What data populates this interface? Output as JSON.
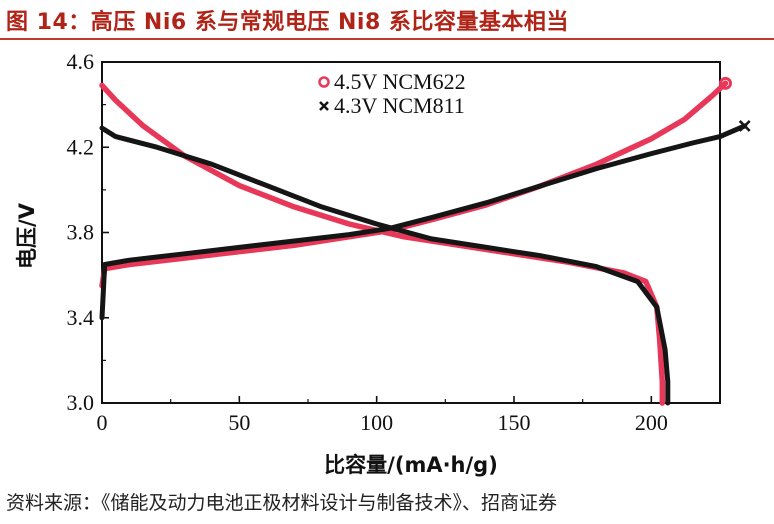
{
  "title": "图 14：高压 Ni6 系与常规电压 Ni8 系比容量基本相当",
  "source": "资料来源：《储能及动力电池正极材料设计与制备技术》、招商证券",
  "colors": {
    "title": "#b02418",
    "ncm622": "#e8385a",
    "ncm811": "#151515"
  },
  "chart_data": {
    "type": "line",
    "xlabel": "比容量/(mA·h/g)",
    "ylabel": "电压/V",
    "xlim": [
      0,
      225
    ],
    "ylim": [
      3.0,
      4.6
    ],
    "xticks": [
      "0",
      "50",
      "100",
      "150",
      "200"
    ],
    "yticks": [
      "3.0",
      "3.4",
      "3.8",
      "4.2",
      "4.6"
    ],
    "legend_position": "top-center",
    "series": [
      {
        "name": "4.5V NCM622",
        "color": "#e8385a",
        "marker": "circle",
        "charge": [
          [
            0,
            3.55
          ],
          [
            1,
            3.63
          ],
          [
            10,
            3.65
          ],
          [
            30,
            3.68
          ],
          [
            50,
            3.71
          ],
          [
            70,
            3.74
          ],
          [
            90,
            3.78
          ],
          [
            105,
            3.81
          ],
          [
            120,
            3.86
          ],
          [
            140,
            3.93
          ],
          [
            160,
            4.02
          ],
          [
            180,
            4.12
          ],
          [
            200,
            4.24
          ],
          [
            212,
            4.33
          ],
          [
            222,
            4.44
          ],
          [
            227,
            4.5
          ]
        ],
        "discharge": [
          [
            0,
            4.49
          ],
          [
            5,
            4.42
          ],
          [
            15,
            4.3
          ],
          [
            30,
            4.16
          ],
          [
            50,
            4.02
          ],
          [
            70,
            3.92
          ],
          [
            90,
            3.84
          ],
          [
            110,
            3.78
          ],
          [
            130,
            3.74
          ],
          [
            150,
            3.7
          ],
          [
            170,
            3.66
          ],
          [
            190,
            3.61
          ],
          [
            198,
            3.57
          ],
          [
            202,
            3.45
          ],
          [
            203,
            3.3
          ],
          [
            204,
            3.1
          ],
          [
            204,
            3.0
          ]
        ]
      },
      {
        "name": "4.3V NCM811",
        "color": "#151515",
        "marker": "x",
        "charge": [
          [
            0,
            3.4
          ],
          [
            1,
            3.65
          ],
          [
            10,
            3.67
          ],
          [
            30,
            3.7
          ],
          [
            50,
            3.73
          ],
          [
            70,
            3.76
          ],
          [
            90,
            3.79
          ],
          [
            105,
            3.82
          ],
          [
            120,
            3.87
          ],
          [
            140,
            3.94
          ],
          [
            160,
            4.02
          ],
          [
            180,
            4.1
          ],
          [
            200,
            4.17
          ],
          [
            215,
            4.22
          ],
          [
            225,
            4.25
          ],
          [
            234,
            4.3
          ]
        ],
        "discharge": [
          [
            0,
            4.29
          ],
          [
            5,
            4.25
          ],
          [
            20,
            4.2
          ],
          [
            40,
            4.12
          ],
          [
            60,
            4.02
          ],
          [
            80,
            3.92
          ],
          [
            100,
            3.84
          ],
          [
            120,
            3.77
          ],
          [
            140,
            3.73
          ],
          [
            160,
            3.69
          ],
          [
            180,
            3.64
          ],
          [
            195,
            3.57
          ],
          [
            202,
            3.45
          ],
          [
            205,
            3.25
          ],
          [
            206,
            3.1
          ],
          [
            206,
            3.0
          ]
        ]
      }
    ]
  }
}
